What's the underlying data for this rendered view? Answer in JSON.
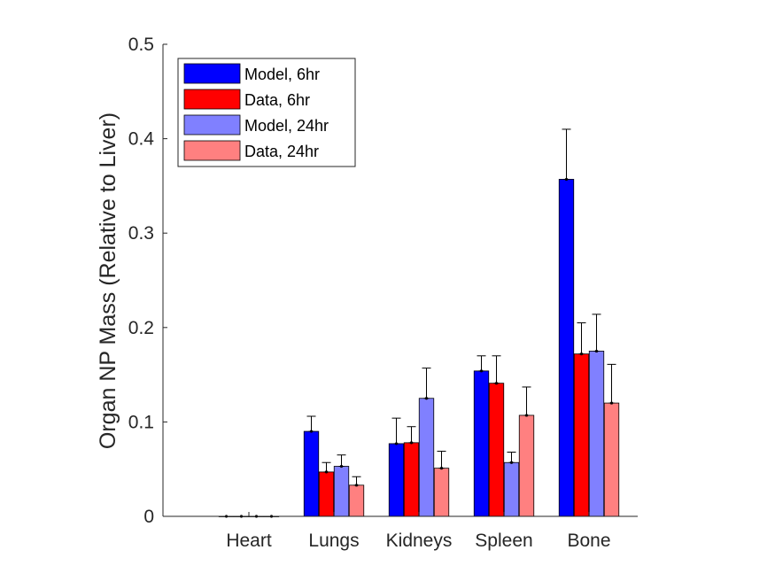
{
  "chart_data": {
    "type": "bar",
    "title": "",
    "xlabel": "",
    "ylabel": "Organ NP Mass (Relative to Liver)",
    "ylim": [
      0,
      0.5
    ],
    "yticks": [
      0,
      0.1,
      0.2,
      0.3,
      0.4,
      0.5
    ],
    "ytick_labels": [
      "0",
      "0.1",
      "0.2",
      "0.3",
      "0.4",
      "0.5"
    ],
    "grid": false,
    "legend_position": "top-left",
    "categories": [
      "Heart",
      "Lungs",
      "Kidneys",
      "Spleen",
      "Bone"
    ],
    "series": [
      {
        "name": "Model, 6hr",
        "color": "#0000ff",
        "values": [
          0.0,
          0.09,
          0.077,
          0.154,
          0.357
        ],
        "error_upper": [
          0.0,
          0.106,
          0.104,
          0.17,
          0.41
        ]
      },
      {
        "name": "Data, 6hr",
        "color": "#ff0000",
        "values": [
          0.0,
          0.047,
          0.078,
          0.141,
          0.172
        ],
        "error_upper": [
          0.0,
          0.057,
          0.095,
          0.17,
          0.205
        ]
      },
      {
        "name": "Model, 24hr",
        "color": "#8080ff",
        "values": [
          0.0,
          0.053,
          0.125,
          0.057,
          0.175
        ],
        "error_upper": [
          0.0,
          0.065,
          0.157,
          0.068,
          0.214
        ]
      },
      {
        "name": "Data, 24hr",
        "color": "#ff8080",
        "values": [
          0.0,
          0.033,
          0.051,
          0.107,
          0.12
        ],
        "error_upper": [
          0.0,
          0.042,
          0.069,
          0.137,
          0.161
        ]
      }
    ]
  }
}
